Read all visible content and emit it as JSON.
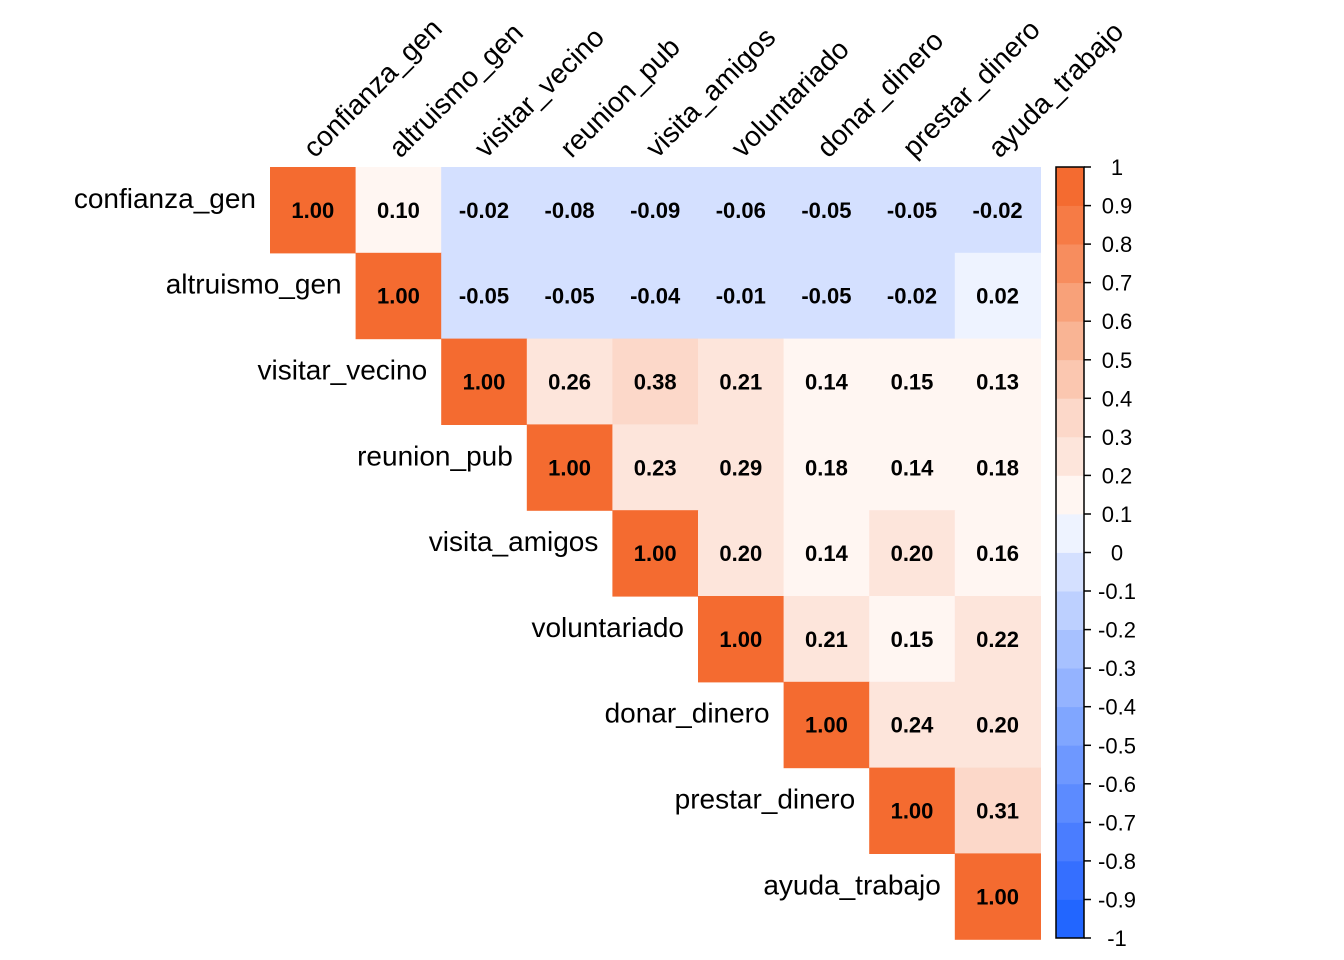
{
  "chart_data": {
    "type": "heatmap",
    "title": "",
    "variables": [
      "confianza_gen",
      "altruismo_gen",
      "visitar_vecino",
      "reunion_pub",
      "visita_amigos",
      "voluntariado",
      "donar_dinero",
      "prestar_dinero",
      "ayuda_trabajo"
    ],
    "matrix": [
      [
        1.0,
        0.1,
        -0.02,
        -0.08,
        -0.09,
        -0.06,
        -0.05,
        -0.05,
        -0.02
      ],
      [
        null,
        1.0,
        -0.05,
        -0.05,
        -0.04,
        -0.01,
        -0.05,
        -0.02,
        0.02
      ],
      [
        null,
        null,
        1.0,
        0.26,
        0.38,
        0.21,
        0.14,
        0.15,
        0.13
      ],
      [
        null,
        null,
        null,
        1.0,
        0.23,
        0.29,
        0.18,
        0.14,
        0.18
      ],
      [
        null,
        null,
        null,
        null,
        1.0,
        0.2,
        0.14,
        0.2,
        0.16
      ],
      [
        null,
        null,
        null,
        null,
        null,
        1.0,
        0.21,
        0.15,
        0.22
      ],
      [
        null,
        null,
        null,
        null,
        null,
        null,
        1.0,
        0.24,
        0.2
      ],
      [
        null,
        null,
        null,
        null,
        null,
        null,
        null,
        1.0,
        0.31
      ],
      [
        null,
        null,
        null,
        null,
        null,
        null,
        null,
        null,
        1.0
      ]
    ],
    "cell_labels": [
      [
        "1.00",
        "0.10",
        "-0.02",
        "-0.08",
        "-0.09",
        "-0.06",
        "-0.05",
        "-0.05",
        "-0.02"
      ],
      [
        "",
        "1.00",
        "-0.05",
        "-0.05",
        "-0.04",
        "-0.01",
        "-0.05",
        "-0.02",
        "0.02"
      ],
      [
        "",
        "",
        "1.00",
        "0.26",
        "0.38",
        "0.21",
        "0.14",
        "0.15",
        "0.13"
      ],
      [
        "",
        "",
        "",
        "1.00",
        "0.23",
        "0.29",
        "0.18",
        "0.14",
        "0.18"
      ],
      [
        "",
        "",
        "",
        "",
        "1.00",
        "0.20",
        "0.14",
        "0.20",
        "0.16"
      ],
      [
        "",
        "",
        "",
        "",
        "",
        "1.00",
        "0.21",
        "0.15",
        "0.22"
      ],
      [
        "",
        "",
        "",
        "",
        "",
        "",
        "1.00",
        "0.24",
        "0.20"
      ],
      [
        "",
        "",
        "",
        "",
        "",
        "",
        "",
        "1.00",
        "0.31"
      ],
      [
        "",
        "",
        "",
        "",
        "",
        "",
        "",
        "",
        "1.00"
      ]
    ],
    "color_scale": {
      "range": [
        -1,
        1
      ],
      "bins": 20,
      "colors": [
        "#2266ff",
        "#356fff",
        "#4a7dff",
        "#5c8bff",
        "#6e98ff",
        "#80a6ff",
        "#94b3ff",
        "#a7c1ff",
        "#bdd0ff",
        "#d4e0ff",
        "#eef3ff",
        "#fff6f2",
        "#fde5db",
        "#fcd8c9",
        "#fbc7b0",
        "#f9b494",
        "#f8a179",
        "#f78d5e",
        "#f67b45",
        "#f46b30"
      ],
      "ticks": [
        "1",
        "0.9",
        "0.8",
        "0.7",
        "0.6",
        "0.5",
        "0.4",
        "0.3",
        "0.2",
        "0.1",
        "0",
        "-0.1",
        "-0.2",
        "-0.3",
        "-0.4",
        "-0.5",
        "-0.6",
        "-0.7",
        "-0.8",
        "-0.9",
        "-1"
      ]
    },
    "legend_position": "right",
    "grid": false
  }
}
